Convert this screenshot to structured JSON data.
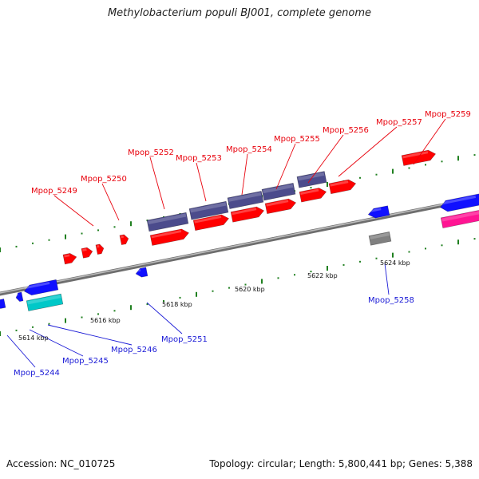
{
  "title": "Methylobacterium populi BJ001, complete genome",
  "footer": {
    "accession": "Accession: NC_010725",
    "summary": "Topology: circular; Length: 5,800,441 bp; Genes: 5,388"
  },
  "colors": {
    "forward_gene": "#ff0000",
    "reverse_gene": "#1010ff",
    "rna_gene": "#00c8c8",
    "pseudo_gene": "#808080",
    "magenta_gene": "#ff1493",
    "orthology_box": "#4b4b8c",
    "backbone": "#8a8a8a",
    "ticks": "#208020",
    "top_label": "#e8000b",
    "bottom_label": "#1a1ad6"
  },
  "scale_labels": [
    "5614 kbp",
    "5616 kbp",
    "5618 kbp",
    "5620 kbp",
    "5622 kbp",
    "5624 kbp"
  ],
  "top_labels": [
    "Mpop_5249",
    "Mpop_5250",
    "Mpop_5252",
    "Mpop_5253",
    "Mpop_5254",
    "Mpop_5255",
    "Mpop_5256",
    "Mpop_5257",
    "Mpop_5259"
  ],
  "bottom_labels": [
    "Mpop_5244",
    "Mpop_5245",
    "Mpop_5246",
    "Mpop_5251",
    "Mpop_5258"
  ]
}
